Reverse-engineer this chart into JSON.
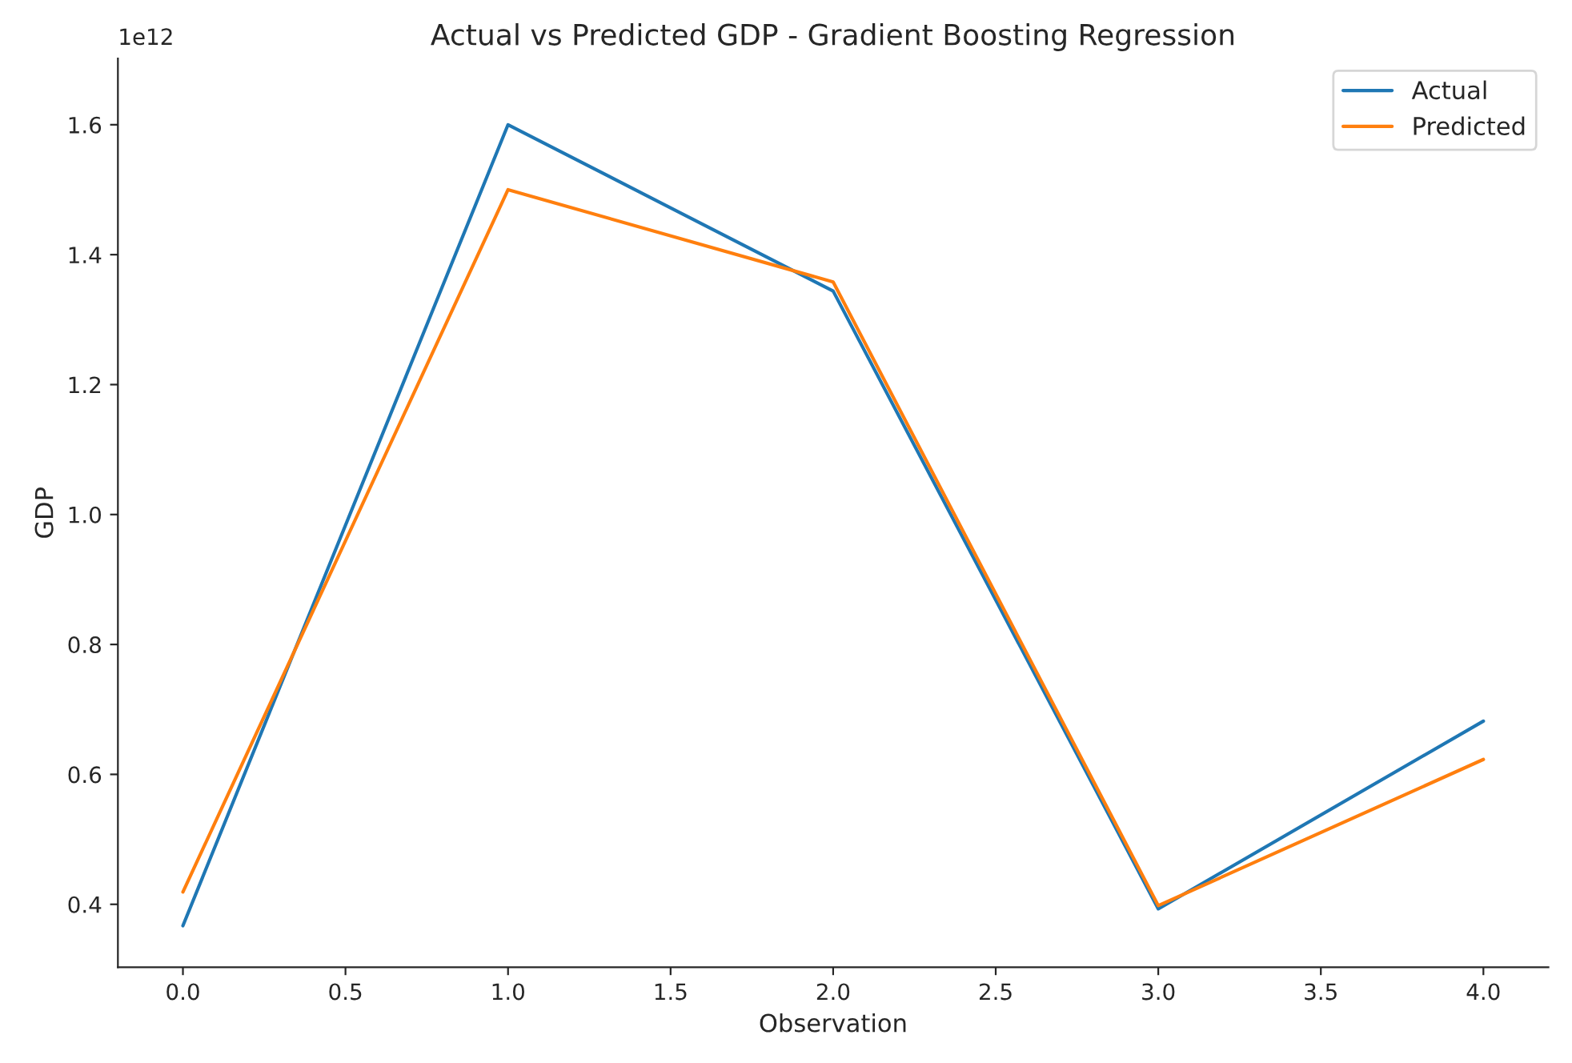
{
  "chart_data": {
    "type": "line",
    "title": "Actual vs Predicted GDP - Gradient Boosting Regression",
    "xlabel": "Observation",
    "ylabel": "GDP",
    "annotations": [
      "1e12"
    ],
    "x": [
      0,
      1,
      2,
      3,
      4
    ],
    "series": [
      {
        "name": "Actual",
        "color": "#1f77b4",
        "values": [
          0.367,
          1.6,
          1.344,
          0.393,
          0.682
        ]
      },
      {
        "name": "Predicted",
        "color": "#ff7f0e",
        "values": [
          0.419,
          1.5,
          1.358,
          0.398,
          0.623
        ]
      }
    ],
    "xlim": [
      -0.2,
      4.2
    ],
    "xticks": [
      {
        "value": 0,
        "label": "0.0"
      },
      {
        "value": 0.5,
        "label": "0.5"
      },
      {
        "value": 1,
        "label": "1.0"
      },
      {
        "value": 1.5,
        "label": "1.5"
      },
      {
        "value": 2,
        "label": "2.0"
      },
      {
        "value": 2.5,
        "label": "2.5"
      },
      {
        "value": 3,
        "label": "3.0"
      },
      {
        "value": 3.5,
        "label": "3.5"
      },
      {
        "value": 4,
        "label": "4.0"
      }
    ],
    "ylim": [
      0.303,
      1.702
    ],
    "yticks": [
      0.4,
      0.6,
      0.8,
      {
        "value": 1.0,
        "label": "1.0"
      },
      1.2,
      1.4,
      1.6
    ],
    "legend": "top right",
    "grid": false,
    "marker": "none",
    "line_style": "solid"
  }
}
